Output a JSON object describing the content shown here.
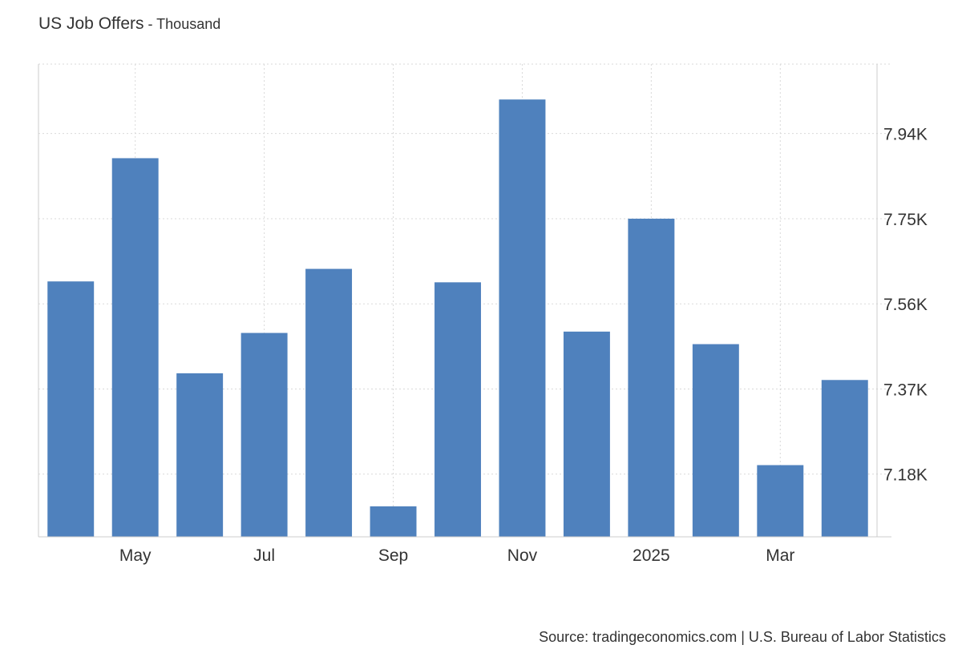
{
  "title": "US Job Offers",
  "subtitle_separator": " - ",
  "subtitle": "Thousand",
  "source": "Source: tradingeconomics.com | U.S. Bureau of Labor Statistics",
  "colors": {
    "bar": "#4f81bd",
    "grid": "#d9d9d9",
    "axis": "#cccccc",
    "text": "#333333"
  },
  "chart_data": {
    "type": "bar",
    "categories": [
      "2024-04",
      "2024-05",
      "2024-06",
      "2024-07",
      "2024-08",
      "2024-09",
      "2024-10",
      "2024-11",
      "2024-12",
      "2025-01",
      "2025-02",
      "2025-03",
      "2025-04"
    ],
    "values": [
      7610,
      7885,
      7405,
      7495,
      7638,
      7108,
      7608,
      8016,
      7498,
      7750,
      7470,
      7200,
      7390
    ],
    "x_tick_labels": [
      {
        "category": "2024-05",
        "label": "May"
      },
      {
        "category": "2024-07",
        "label": "Jul"
      },
      {
        "category": "2024-09",
        "label": "Sep"
      },
      {
        "category": "2024-11",
        "label": "Nov"
      },
      {
        "category": "2025-01",
        "label": "2025"
      },
      {
        "category": "2025-03",
        "label": "Mar"
      }
    ],
    "y_ticks": [
      {
        "value": 7180,
        "label": "7.18K"
      },
      {
        "value": 7370,
        "label": "7.37K"
      },
      {
        "value": 7560,
        "label": "7.56K"
      },
      {
        "value": 7750,
        "label": "7.75K"
      },
      {
        "value": 7940,
        "label": "7.94K"
      }
    ],
    "ylim": [
      7040,
      8095
    ],
    "y_axis_position": "right",
    "grid": true,
    "legend": false
  }
}
